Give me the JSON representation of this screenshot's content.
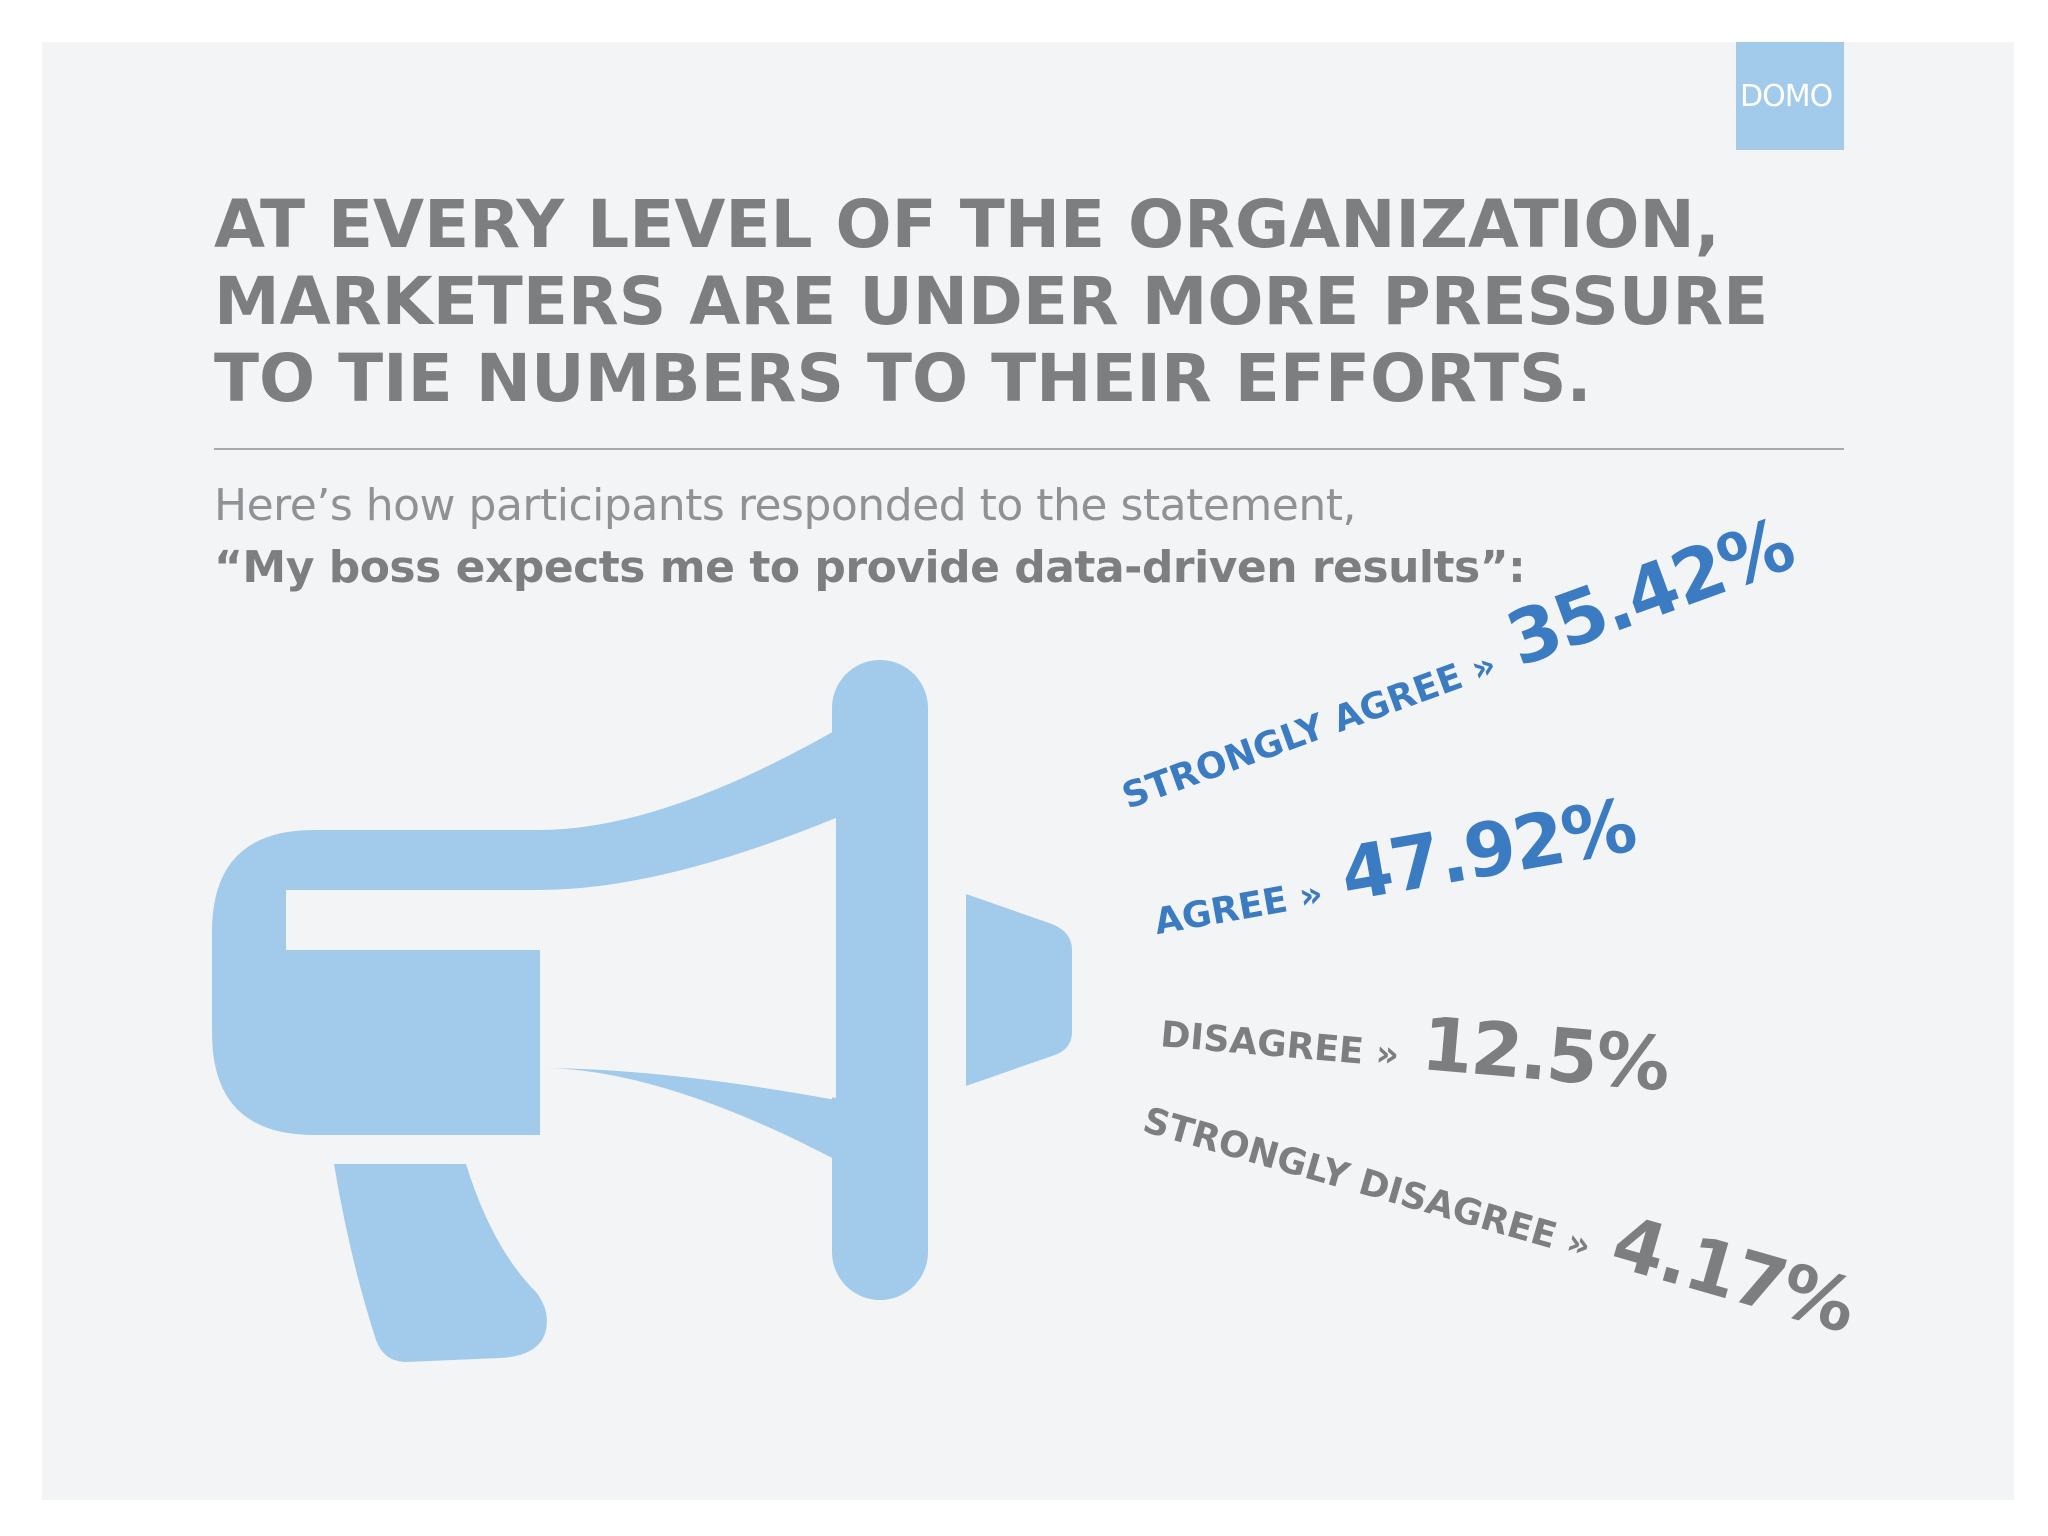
{
  "brand": {
    "logo_text": "DOMO",
    "logo_bg": "#a2cbeb",
    "background": "#f3f4f6"
  },
  "headline": {
    "lines": [
      "AT EVERY LEVEL OF THE ORGANIZATION,",
      "MARKETERS ARE UNDER MORE PRESSURE",
      "TO TIE NUMBERS TO THEIR EFFORTS."
    ],
    "color": "#7d7e80"
  },
  "subtitle": {
    "intro": "Here’s how participants responded to the statement,",
    "statement": "“My boss expects me to provide data-driven results”:"
  },
  "illustration": {
    "icon": "megaphone-icon",
    "color": "#a2cbeb"
  },
  "chart_data": {
    "type": "table",
    "categories": [
      "STRONGLY AGREE",
      "AGREE",
      "DISAGREE",
      "STRONGLY DISAGREE"
    ],
    "values": [
      35.42,
      47.92,
      12.5,
      4.17
    ],
    "unit": "%",
    "separator": "»",
    "value_labels": [
      "35.42%",
      "47.92%",
      "12.5%",
      "4.17%"
    ],
    "colors": {
      "agree": "#3b7bc1",
      "disagree": "#7d7e80"
    }
  }
}
